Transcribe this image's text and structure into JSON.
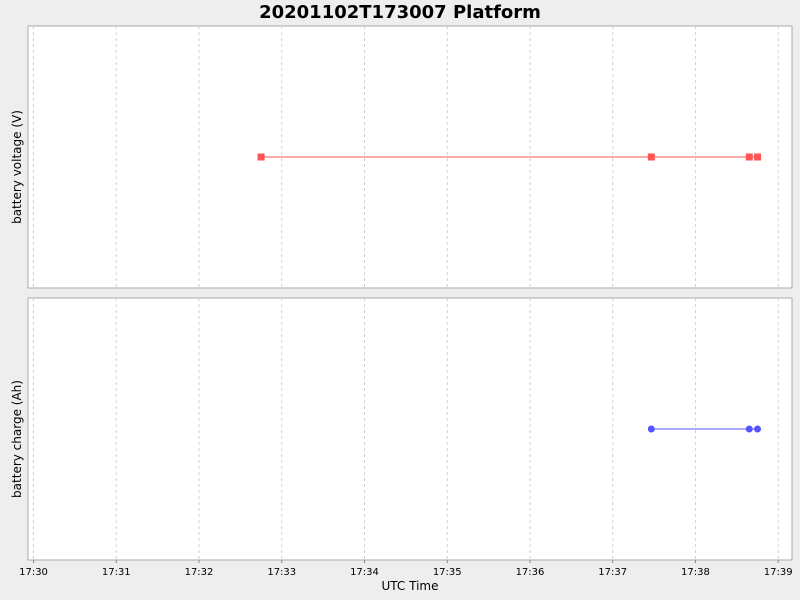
{
  "chart_data": {
    "type": "line",
    "title": "20201102T173007 Platform",
    "xlabel": "UTC Time",
    "x_ticks": [
      "17:30",
      "17:31",
      "17:32",
      "17:33",
      "17:34",
      "17:35",
      "17:36",
      "17:37",
      "17:38",
      "17:39"
    ],
    "xlim": [
      "17:29:56",
      "17:39:10"
    ],
    "grid": true,
    "subplots": [
      {
        "ylabel": "battery voltage (V)",
        "color": "#ff5555",
        "marker": "square",
        "x": [
          "17:32:45",
          "17:37:28",
          "17:38:39",
          "17:38:45"
        ],
        "y": [
          1,
          1,
          1,
          1
        ],
        "ylim": [
          0,
          2
        ]
      },
      {
        "ylabel": "battery charge (Ah)",
        "color": "#5555ff",
        "marker": "circle",
        "x": [
          "17:37:28",
          "17:38:39",
          "17:38:45"
        ],
        "y": [
          1,
          1,
          1
        ],
        "ylim": [
          0,
          2
        ]
      }
    ]
  }
}
